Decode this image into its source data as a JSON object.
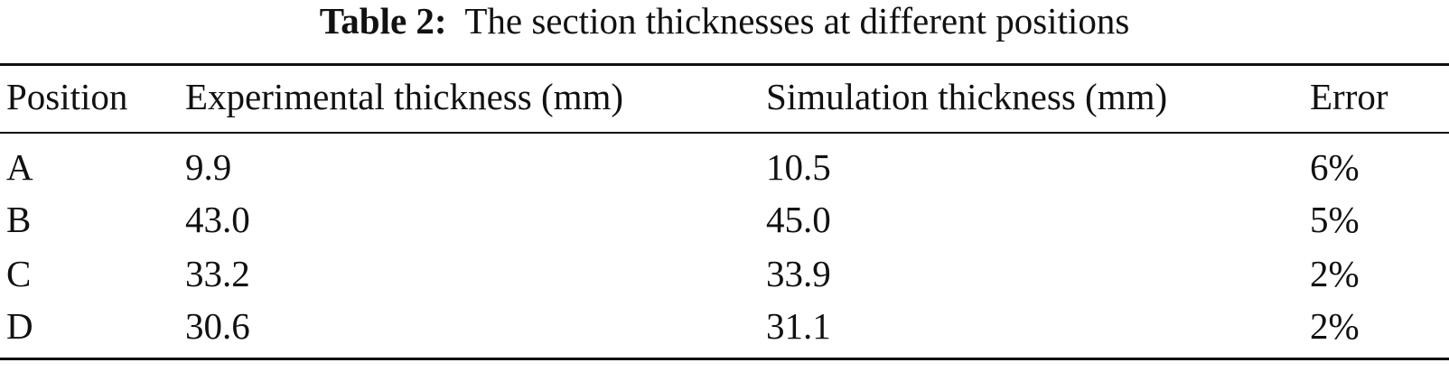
{
  "caption": {
    "label": "Table 2:",
    "text": "The section thicknesses at different positions"
  },
  "table": {
    "headers": [
      "Position",
      "Experimental thickness (mm)",
      "Simulation thickness (mm)",
      "Error"
    ],
    "rows": [
      [
        "A",
        "9.9",
        "10.5",
        "6%"
      ],
      [
        "B",
        "43.0",
        "45.0",
        "5%"
      ],
      [
        "C",
        "33.2",
        "33.9",
        "2%"
      ],
      [
        "D",
        "30.6",
        "31.1",
        "2%"
      ]
    ]
  }
}
